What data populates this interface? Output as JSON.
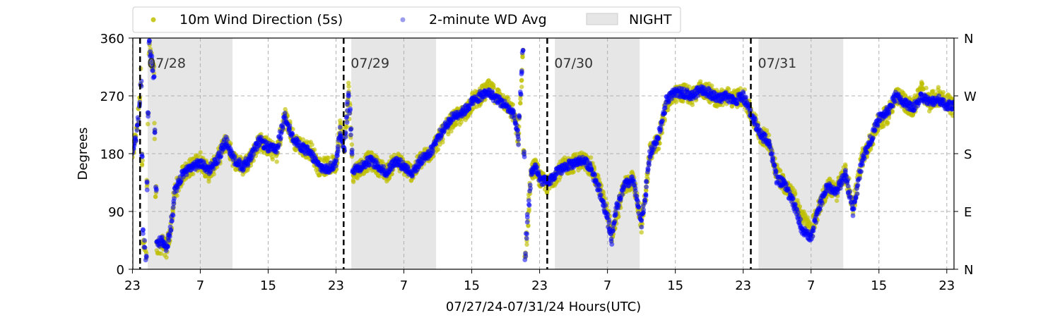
{
  "chart_data": {
    "type": "scatter",
    "xlabel": "07/27/24-07/31/24  Hours(UTC)",
    "ylabel": "Degrees",
    "xlim": [
      0,
      97
    ],
    "ylim": [
      0,
      360
    ],
    "x_ticks": [
      0,
      8,
      16,
      24,
      32,
      40,
      48,
      56,
      64,
      72,
      80,
      88,
      96
    ],
    "x_tick_labels": [
      "23",
      "7",
      "15",
      "23",
      "7",
      "15",
      "23",
      "7",
      "15",
      "23",
      "7",
      "15",
      "23"
    ],
    "y_ticks": [
      0,
      90,
      180,
      270,
      360
    ],
    "y_tick_labels": [
      "0",
      "90",
      "180",
      "270",
      "360"
    ],
    "y2_ticks": [
      0,
      90,
      180,
      270,
      360
    ],
    "y2_tick_labels": [
      "N",
      "E",
      "S",
      "W",
      "N"
    ],
    "grid": true,
    "legend_position": "top",
    "day_boundaries": [
      {
        "x": 0.9,
        "label": "07/28"
      },
      {
        "x": 24.9,
        "label": "07/29"
      },
      {
        "x": 48.9,
        "label": "07/30"
      },
      {
        "x": 72.9,
        "label": "07/31"
      }
    ],
    "night_periods": [
      [
        1.8,
        11.8
      ],
      [
        25.8,
        35.8
      ],
      [
        49.8,
        59.8
      ],
      [
        73.8,
        83.8
      ]
    ],
    "series": [
      {
        "name": "10m Wind Direction (5s)",
        "color": "#bfbf00",
        "marker": "circle",
        "spread": 14,
        "points": [
          [
            0.0,
            180
          ],
          [
            0.4,
            210
          ],
          [
            0.7,
            240
          ],
          [
            1.0,
            300
          ],
          [
            1.3,
            40
          ],
          [
            1.6,
            20
          ],
          [
            2.0,
            340
          ],
          [
            2.5,
            310
          ],
          [
            2.9,
            30
          ],
          [
            3.5,
            40
          ],
          [
            4.0,
            30
          ],
          [
            4.5,
            60
          ],
          [
            5.0,
            120
          ],
          [
            6.0,
            150
          ],
          [
            7.0,
            160
          ],
          [
            8.0,
            170
          ],
          [
            9.0,
            150
          ],
          [
            10.0,
            170
          ],
          [
            11.0,
            200
          ],
          [
            12.0,
            170
          ],
          [
            13.0,
            160
          ],
          [
            14.0,
            175
          ],
          [
            15.0,
            200
          ],
          [
            16.0,
            190
          ],
          [
            17.0,
            180
          ],
          [
            18.0,
            240
          ],
          [
            19.0,
            200
          ],
          [
            20.0,
            190
          ],
          [
            21.0,
            185
          ],
          [
            22.0,
            160
          ],
          [
            23.0,
            160
          ],
          [
            24.0,
            165
          ],
          [
            24.5,
            220
          ],
          [
            25.0,
            190
          ],
          [
            25.5,
            280
          ],
          [
            26.0,
            150
          ],
          [
            27.0,
            160
          ],
          [
            28.0,
            170
          ],
          [
            29.0,
            160
          ],
          [
            30.0,
            150
          ],
          [
            31.0,
            170
          ],
          [
            32.0,
            160
          ],
          [
            33.0,
            150
          ],
          [
            34.0,
            170
          ],
          [
            35.0,
            180
          ],
          [
            36.0,
            200
          ],
          [
            37.0,
            220
          ],
          [
            38.0,
            235
          ],
          [
            39.0,
            240
          ],
          [
            40.0,
            260
          ],
          [
            41.0,
            270
          ],
          [
            42.0,
            280
          ],
          [
            43.0,
            270
          ],
          [
            44.0,
            260
          ],
          [
            45.0,
            240
          ],
          [
            45.5,
            200
          ],
          [
            46.0,
            330
          ],
          [
            46.3,
            20
          ],
          [
            46.6,
            80
          ],
          [
            47.0,
            150
          ],
          [
            47.5,
            160
          ],
          [
            48.0,
            140
          ],
          [
            49.0,
            130
          ],
          [
            50.0,
            150
          ],
          [
            51.0,
            160
          ],
          [
            52.0,
            165
          ],
          [
            53.0,
            170
          ],
          [
            54.0,
            160
          ],
          [
            55.0,
            130
          ],
          [
            56.0,
            90
          ],
          [
            56.5,
            50
          ],
          [
            57.0,
            80
          ],
          [
            58.0,
            130
          ],
          [
            59.0,
            140
          ],
          [
            60.0,
            70
          ],
          [
            60.5,
            120
          ],
          [
            61.0,
            180
          ],
          [
            62.0,
            200
          ],
          [
            63.0,
            260
          ],
          [
            64.0,
            270
          ],
          [
            65.0,
            275
          ],
          [
            66.0,
            270
          ],
          [
            67.0,
            280
          ],
          [
            68.0,
            275
          ],
          [
            69.0,
            265
          ],
          [
            70.0,
            270
          ],
          [
            71.0,
            265
          ],
          [
            72.0,
            270
          ],
          [
            73.0,
            240
          ],
          [
            74.0,
            210
          ],
          [
            75.0,
            200
          ],
          [
            76.0,
            150
          ],
          [
            77.0,
            130
          ],
          [
            78.0,
            110
          ],
          [
            79.0,
            80
          ],
          [
            80.0,
            60
          ],
          [
            81.0,
            100
          ],
          [
            82.0,
            130
          ],
          [
            83.0,
            120
          ],
          [
            84.0,
            150
          ],
          [
            85.0,
            100
          ],
          [
            86.0,
            170
          ],
          [
            87.0,
            200
          ],
          [
            88.0,
            230
          ],
          [
            89.0,
            240
          ],
          [
            90.0,
            270
          ],
          [
            91.0,
            260
          ],
          [
            92.0,
            250
          ],
          [
            93.0,
            280
          ],
          [
            94.0,
            260
          ],
          [
            95.0,
            270
          ],
          [
            96.0,
            260
          ],
          [
            97.0,
            250
          ]
        ]
      },
      {
        "name": "2-minute WD Avg",
        "color": "#0000ff",
        "marker": "circle",
        "spread": 7,
        "points": [
          [
            0.0,
            185
          ],
          [
            0.4,
            205
          ],
          [
            0.7,
            230
          ],
          [
            1.0,
            290
          ],
          [
            1.3,
            60
          ],
          [
            1.6,
            20
          ],
          [
            2.0,
            350
          ],
          [
            2.5,
            300
          ],
          [
            2.9,
            40
          ],
          [
            3.5,
            45
          ],
          [
            4.0,
            35
          ],
          [
            4.5,
            60
          ],
          [
            5.0,
            120
          ],
          [
            6.0,
            150
          ],
          [
            7.0,
            160
          ],
          [
            8.0,
            165
          ],
          [
            9.0,
            155
          ],
          [
            10.0,
            170
          ],
          [
            11.0,
            200
          ],
          [
            12.0,
            170
          ],
          [
            13.0,
            160
          ],
          [
            14.0,
            175
          ],
          [
            15.0,
            200
          ],
          [
            16.0,
            190
          ],
          [
            17.0,
            185
          ],
          [
            18.0,
            240
          ],
          [
            19.0,
            200
          ],
          [
            20.0,
            190
          ],
          [
            21.0,
            180
          ],
          [
            22.0,
            160
          ],
          [
            23.0,
            155
          ],
          [
            24.0,
            165
          ],
          [
            24.5,
            215
          ],
          [
            25.0,
            190
          ],
          [
            25.5,
            275
          ],
          [
            26.0,
            155
          ],
          [
            27.0,
            160
          ],
          [
            28.0,
            170
          ],
          [
            29.0,
            160
          ],
          [
            30.0,
            150
          ],
          [
            31.0,
            170
          ],
          [
            32.0,
            160
          ],
          [
            33.0,
            150
          ],
          [
            34.0,
            170
          ],
          [
            35.0,
            180
          ],
          [
            36.0,
            205
          ],
          [
            37.0,
            225
          ],
          [
            38.0,
            240
          ],
          [
            39.0,
            245
          ],
          [
            40.0,
            260
          ],
          [
            41.0,
            270
          ],
          [
            42.0,
            275
          ],
          [
            43.0,
            265
          ],
          [
            44.0,
            255
          ],
          [
            45.0,
            240
          ],
          [
            45.5,
            200
          ],
          [
            46.0,
            340
          ],
          [
            46.3,
            20
          ],
          [
            46.6,
            80
          ],
          [
            47.0,
            150
          ],
          [
            47.5,
            160
          ],
          [
            48.0,
            140
          ],
          [
            49.0,
            135
          ],
          [
            50.0,
            150
          ],
          [
            51.0,
            160
          ],
          [
            52.0,
            165
          ],
          [
            53.0,
            170
          ],
          [
            54.0,
            160
          ],
          [
            55.0,
            125
          ],
          [
            56.0,
            80
          ],
          [
            56.5,
            45
          ],
          [
            57.0,
            90
          ],
          [
            58.0,
            130
          ],
          [
            59.0,
            140
          ],
          [
            60.0,
            70
          ],
          [
            60.5,
            120
          ],
          [
            61.0,
            180
          ],
          [
            62.0,
            205
          ],
          [
            63.0,
            265
          ],
          [
            64.0,
            275
          ],
          [
            65.0,
            275
          ],
          [
            66.0,
            270
          ],
          [
            67.0,
            280
          ],
          [
            68.0,
            275
          ],
          [
            69.0,
            265
          ],
          [
            70.0,
            270
          ],
          [
            71.0,
            262
          ],
          [
            72.0,
            270
          ],
          [
            73.0,
            240
          ],
          [
            74.0,
            210
          ],
          [
            75.0,
            200
          ],
          [
            76.0,
            140
          ],
          [
            77.0,
            130
          ],
          [
            78.0,
            100
          ],
          [
            79.0,
            60
          ],
          [
            80.0,
            50
          ],
          [
            81.0,
            100
          ],
          [
            82.0,
            130
          ],
          [
            83.0,
            120
          ],
          [
            84.0,
            150
          ],
          [
            85.0,
            90
          ],
          [
            86.0,
            170
          ],
          [
            87.0,
            200
          ],
          [
            88.0,
            235
          ],
          [
            89.0,
            245
          ],
          [
            90.0,
            270
          ],
          [
            91.0,
            260
          ],
          [
            92.0,
            250
          ],
          [
            93.0,
            270
          ],
          [
            94.0,
            260
          ],
          [
            95.0,
            265
          ],
          [
            96.0,
            255
          ],
          [
            97.0,
            255
          ]
        ]
      }
    ],
    "legend": [
      {
        "label": "10m Wind Direction (5s)",
        "type": "marker",
        "color": "#bfbf00"
      },
      {
        "label": "2-minute WD Avg",
        "type": "marker",
        "color": "#8a8ae8"
      },
      {
        "label": "NIGHT",
        "type": "patch",
        "color": "#e6e6e6"
      }
    ]
  }
}
